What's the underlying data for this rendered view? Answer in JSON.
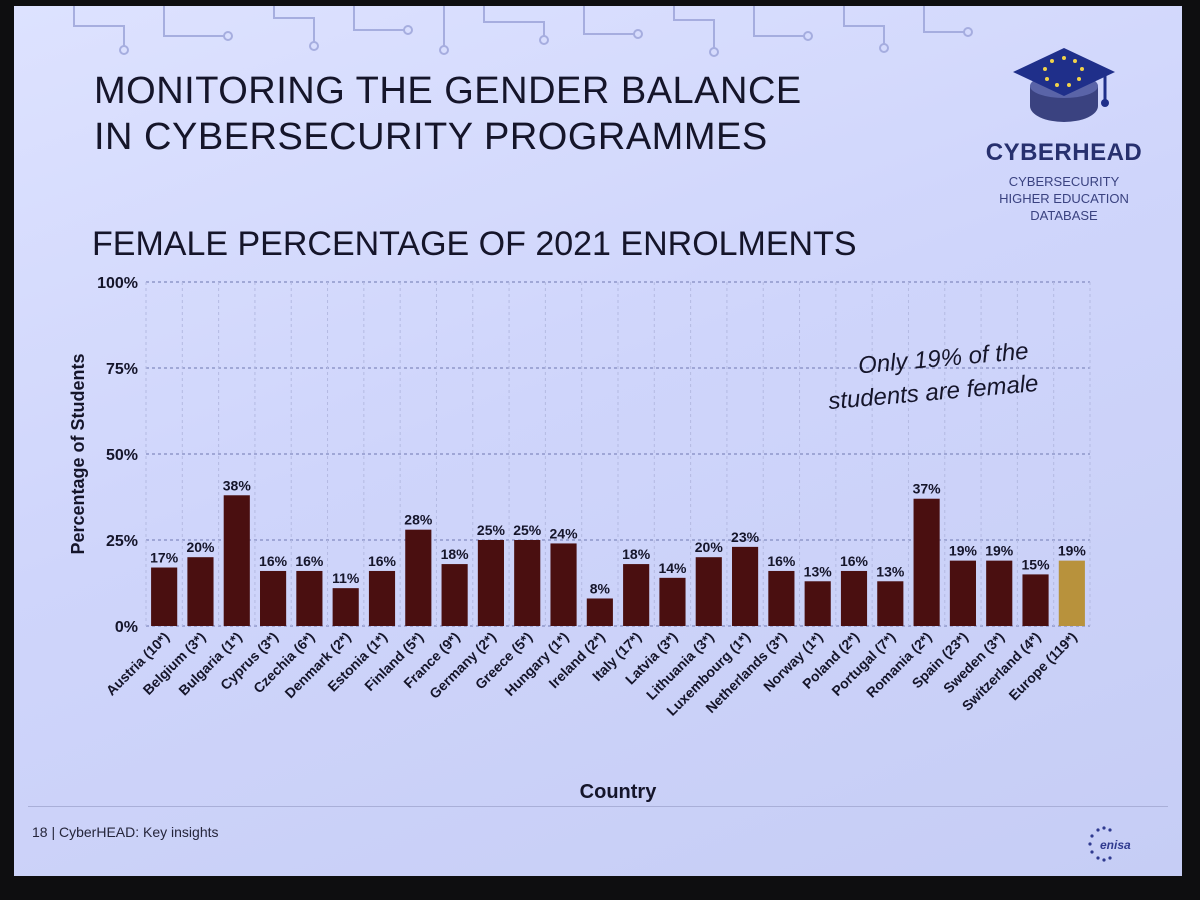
{
  "slide": {
    "title_lines": [
      "MONITORING THE GENDER BALANCE",
      "IN CYBERSECURITY PROGRAMMES"
    ],
    "subtitle": "FEMALE PERCENTAGE OF 2021 ENROLMENTS",
    "logo": {
      "name": "CYBERHEAD",
      "tagline_lines": [
        "CYBERSECURITY",
        "HIGHER EDUCATION",
        "DATABASE"
      ],
      "icon": "graduation-cap-icon"
    },
    "footer": "18 | CyberHEAD: Key insights",
    "footer_logo": "enisa"
  },
  "chart_data": {
    "type": "bar",
    "xlabel": "Country",
    "ylabel": "Percentage of Students",
    "ylim": [
      0,
      100
    ],
    "yticks": [
      "0%",
      "25%",
      "50%",
      "75%",
      "100%"
    ],
    "grid": true,
    "categories": [
      "Austria (10*)",
      "Belgium (3*)",
      "Bulgaria (1*)",
      "Cyprus (3*)",
      "Czechia (6*)",
      "Denmark (2*)",
      "Estonia (1*)",
      "Finland (5*)",
      "France (9*)",
      "Germany (2*)",
      "Greece (5*)",
      "Hungary (1*)",
      "Ireland (2*)",
      "Italy (17*)",
      "Latvia (3*)",
      "Lithuania (3*)",
      "Luxembourg (1*)",
      "Netherlands (3*)",
      "Norway (1*)",
      "Poland (2*)",
      "Portugal (7*)",
      "Romania (2*)",
      "Spain (23*)",
      "Sweden (3*)",
      "Switzerland (4*)",
      "Europe (119*)"
    ],
    "values": [
      17,
      20,
      38,
      16,
      16,
      11,
      16,
      28,
      18,
      25,
      25,
      24,
      8,
      18,
      14,
      20,
      23,
      16,
      13,
      16,
      13,
      37,
      19,
      19,
      15,
      19
    ],
    "labels": [
      "17%",
      "20%",
      "38%",
      "16%",
      "16%",
      "11%",
      "16%",
      "28%",
      "18%",
      "25%",
      "25%",
      "24%",
      "8%",
      "18%",
      "14%",
      "20%",
      "23%",
      "16%",
      "13%",
      "16%",
      "13%",
      "37%",
      "19%",
      "19%",
      "15%",
      "19%"
    ],
    "bar_color": "#4a0f10",
    "highlight_color": "#b8923c",
    "highlight_index": 25,
    "annotation": [
      "Only 19% of the",
      "students are female"
    ]
  },
  "colors": {
    "background": "#d4d9fc",
    "text": "#15152a",
    "logo": "#27306e"
  }
}
